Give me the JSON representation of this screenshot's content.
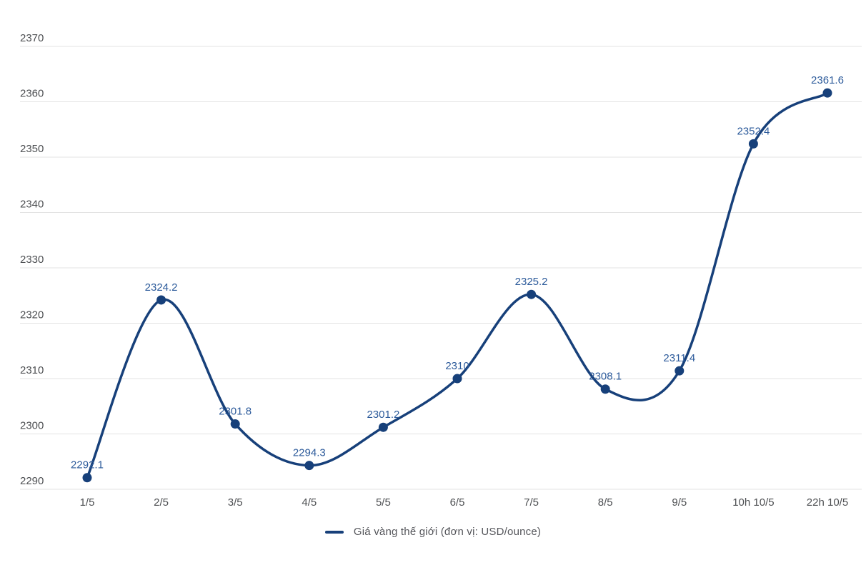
{
  "chart_data": {
    "type": "line",
    "smooth": true,
    "grid": true,
    "legend_position": "bottom",
    "title": "",
    "xlabel": "",
    "ylabel": "",
    "categories": [
      "1/5",
      "2/5",
      "3/5",
      "4/5",
      "5/5",
      "6/5",
      "7/5",
      "8/5",
      "9/5",
      "10h 10/5",
      "22h 10/5"
    ],
    "series": [
      {
        "name": "Giá vàng thế giới (đơn vị: USD/ounce)",
        "values": [
          2292.1,
          2324.2,
          2301.8,
          2294.3,
          2301.2,
          2310,
          2325.2,
          2308.1,
          2311.4,
          2352.4,
          2361.6
        ],
        "point_labels": [
          "2292.1",
          "2324.2",
          "2301.8",
          "2294.3",
          "2301.2",
          "2310",
          "2325.2",
          "2308.1",
          "2311.4",
          "2352.4",
          "2361.6"
        ]
      }
    ],
    "ylim": [
      2290,
      2370
    ],
    "y_ticks": [
      2290,
      2300,
      2310,
      2320,
      2330,
      2340,
      2350,
      2360,
      2370
    ]
  },
  "legend": {
    "label": "Giá vàng thế giới (đơn vị: USD/ounce)"
  },
  "colors": {
    "line": "#17407a",
    "point": "#17407a",
    "data_label": "#2d5b9b",
    "grid": "#e3e3e3",
    "tick_label": "#4e5053",
    "legend_text": "#55565b",
    "background": "#ffffff"
  }
}
